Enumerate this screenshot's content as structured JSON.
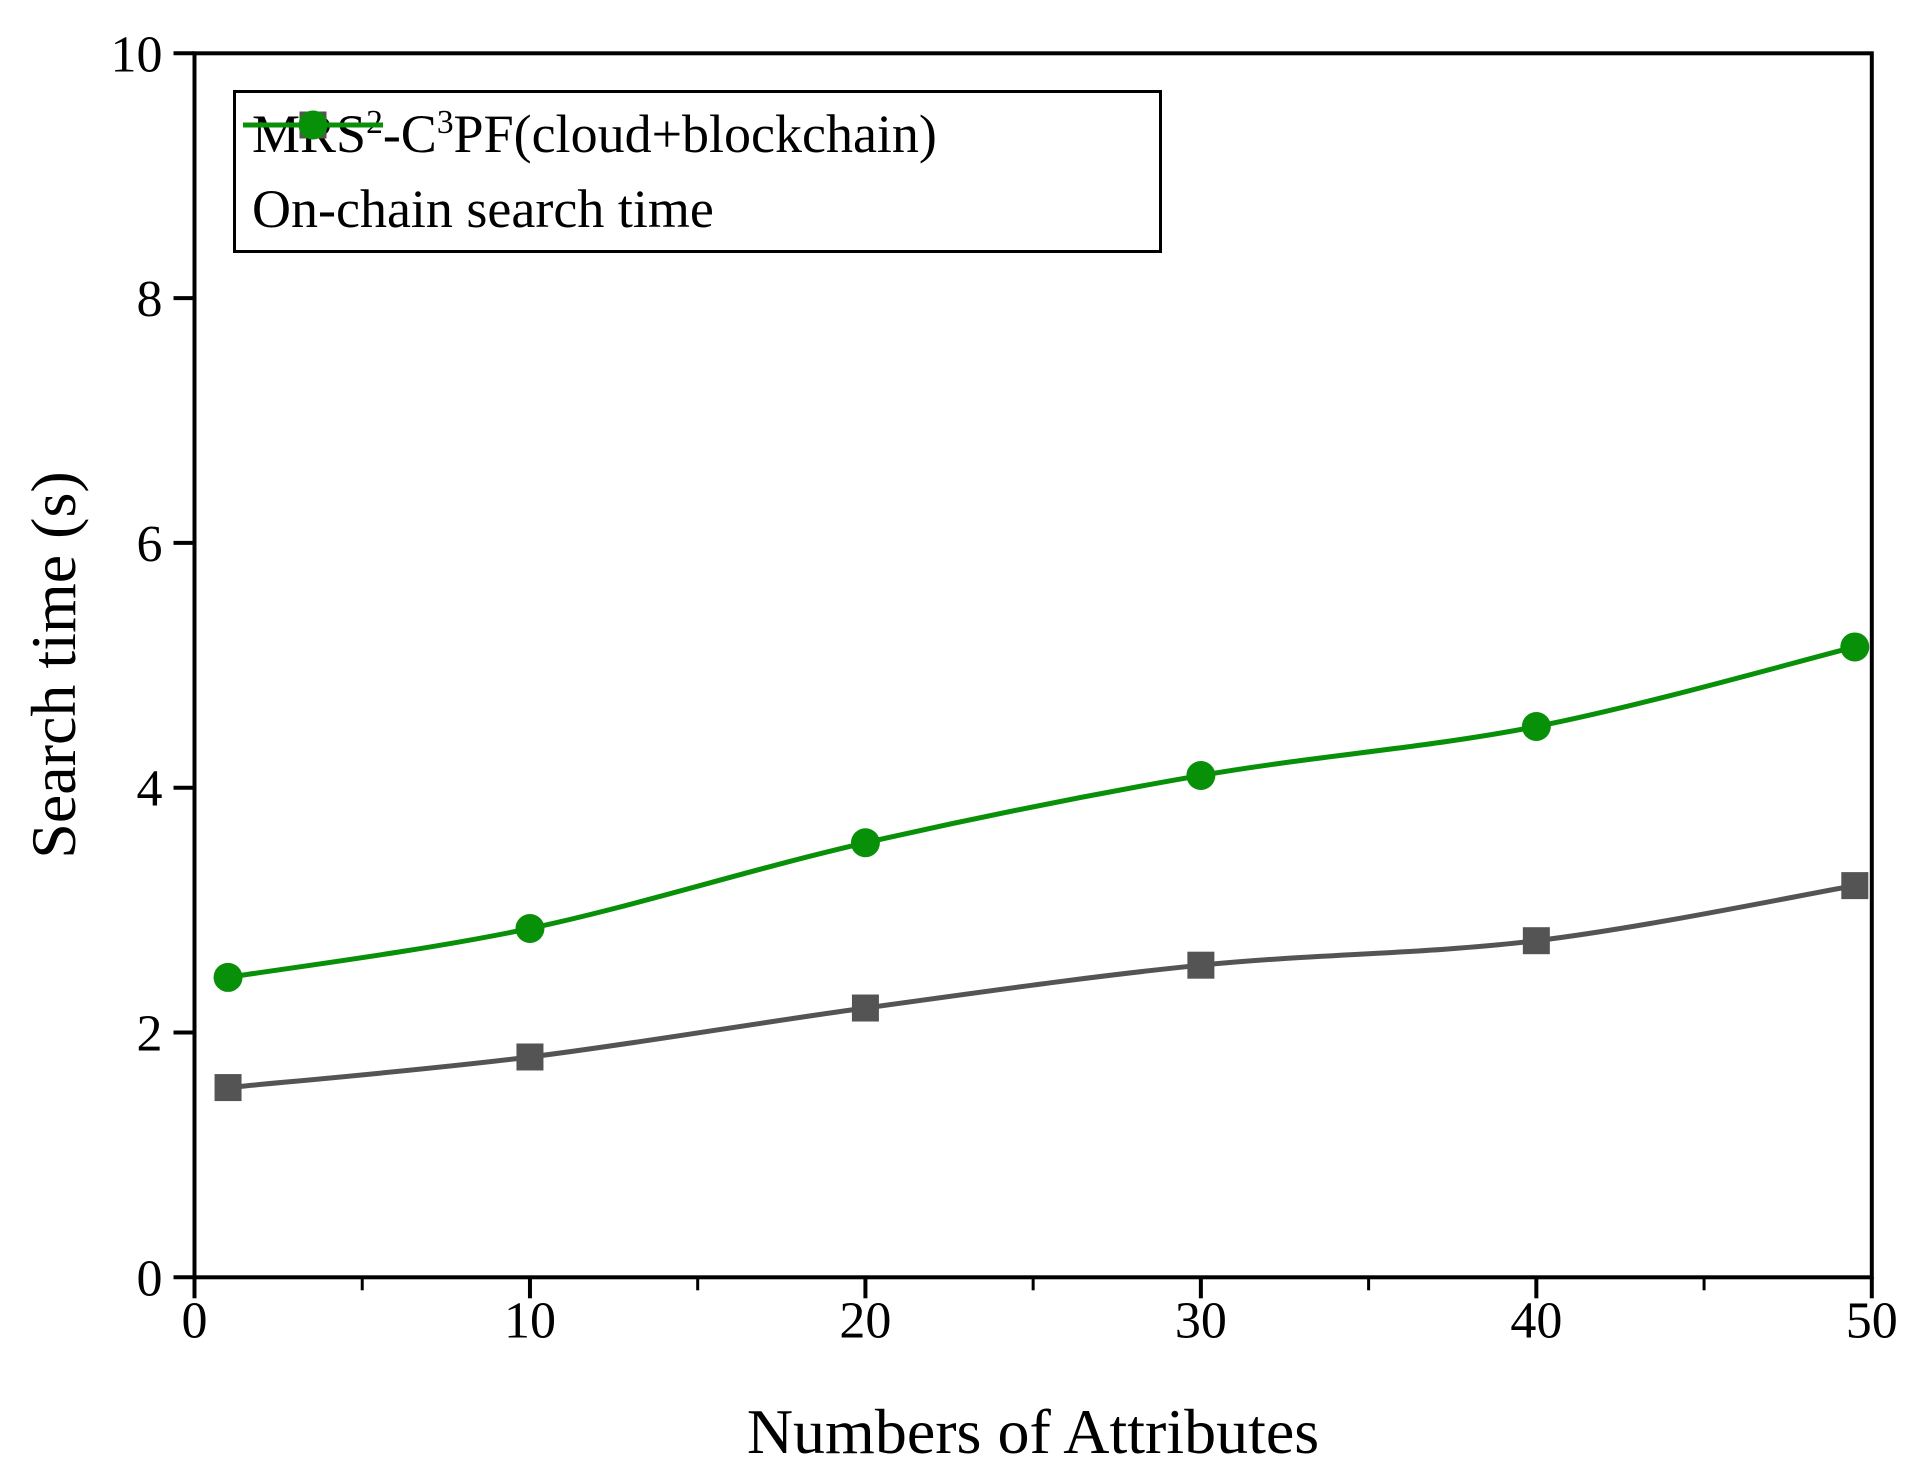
{
  "figure": {
    "background": "#ffffff"
  },
  "chart_data": {
    "type": "line",
    "title": "",
    "xlabel": "Numbers of Attributes",
    "ylabel": "Search time (s)",
    "x": [
      1,
      10,
      20,
      30,
      40,
      50
    ],
    "xlim": [
      0,
      50
    ],
    "ylim": [
      0,
      10
    ],
    "x_major_ticks": [
      0,
      10,
      20,
      30,
      40,
      50
    ],
    "x_minor_ticks": [
      5,
      15,
      25,
      35,
      45
    ],
    "y_major_ticks": [
      0,
      2,
      4,
      6,
      8,
      10
    ],
    "x_tick_labels": [
      "0",
      "10",
      "20",
      "30",
      "40",
      "50"
    ],
    "y_tick_labels": [
      "0",
      "2",
      "4",
      "6",
      "8",
      "10"
    ],
    "grid": false,
    "legend_position": "top-left",
    "axis_color": "#000000",
    "series": [
      {
        "name": "MRS²-C³PF(cloud+blockchain)",
        "name_parts": [
          "MRS",
          "2",
          "-C",
          "3",
          "PF(cloud+blockchain)"
        ],
        "marker": "square",
        "color": "#545454",
        "values": [
          1.55,
          1.8,
          2.2,
          2.55,
          2.75,
          3.2
        ]
      },
      {
        "name": "On-chain search time",
        "marker": "circle",
        "color": "#089008",
        "values": [
          2.45,
          2.85,
          3.55,
          4.1,
          4.5,
          5.15
        ]
      }
    ]
  }
}
